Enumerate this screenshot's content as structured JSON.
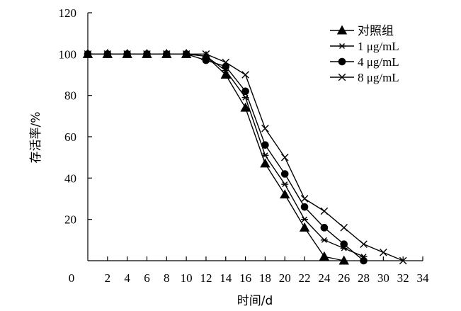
{
  "chart_data": {
    "type": "line",
    "title": "",
    "xlabel": "时间/d",
    "ylabel": "存活率/%",
    "xlim": [
      0,
      34
    ],
    "ylim": [
      0,
      120
    ],
    "x_ticks": [
      0,
      2,
      4,
      6,
      8,
      10,
      12,
      14,
      16,
      18,
      20,
      22,
      24,
      26,
      28,
      30,
      32,
      34
    ],
    "y_ticks": [
      20,
      40,
      60,
      80,
      100,
      120
    ],
    "grid": false,
    "legend_position": "top-right",
    "series": [
      {
        "name": "对照组",
        "marker": "triangle",
        "x": [
          0,
          2,
          4,
          6,
          8,
          10,
          12,
          14,
          16,
          18,
          20,
          22,
          24,
          26
        ],
        "y": [
          100,
          100,
          100,
          100,
          100,
          100,
          99,
          90,
          74,
          47,
          32,
          16,
          2,
          0
        ]
      },
      {
        "name": "1 μg/mL",
        "marker": "asterisk",
        "x": [
          0,
          2,
          4,
          6,
          8,
          10,
          12,
          14,
          16,
          18,
          20,
          22,
          24,
          26,
          28
        ],
        "y": [
          100,
          100,
          100,
          100,
          100,
          100,
          99,
          92,
          79,
          51,
          37,
          20,
          10,
          6,
          2
        ]
      },
      {
        "name": "4 μg/mL",
        "marker": "circle",
        "x": [
          0,
          2,
          4,
          6,
          8,
          10,
          12,
          14,
          16,
          18,
          20,
          22,
          24,
          26,
          28
        ],
        "y": [
          100,
          100,
          100,
          100,
          100,
          100,
          97,
          94,
          82,
          56,
          42,
          26,
          16,
          8,
          0
        ]
      },
      {
        "name": "8 μg/mL",
        "marker": "x",
        "x": [
          0,
          2,
          4,
          6,
          8,
          10,
          12,
          14,
          16,
          18,
          20,
          22,
          24,
          26,
          28,
          30,
          32
        ],
        "y": [
          100,
          100,
          100,
          100,
          100,
          100,
          100,
          96,
          90,
          64,
          50,
          30,
          24,
          16,
          8,
          4,
          0
        ]
      }
    ]
  }
}
